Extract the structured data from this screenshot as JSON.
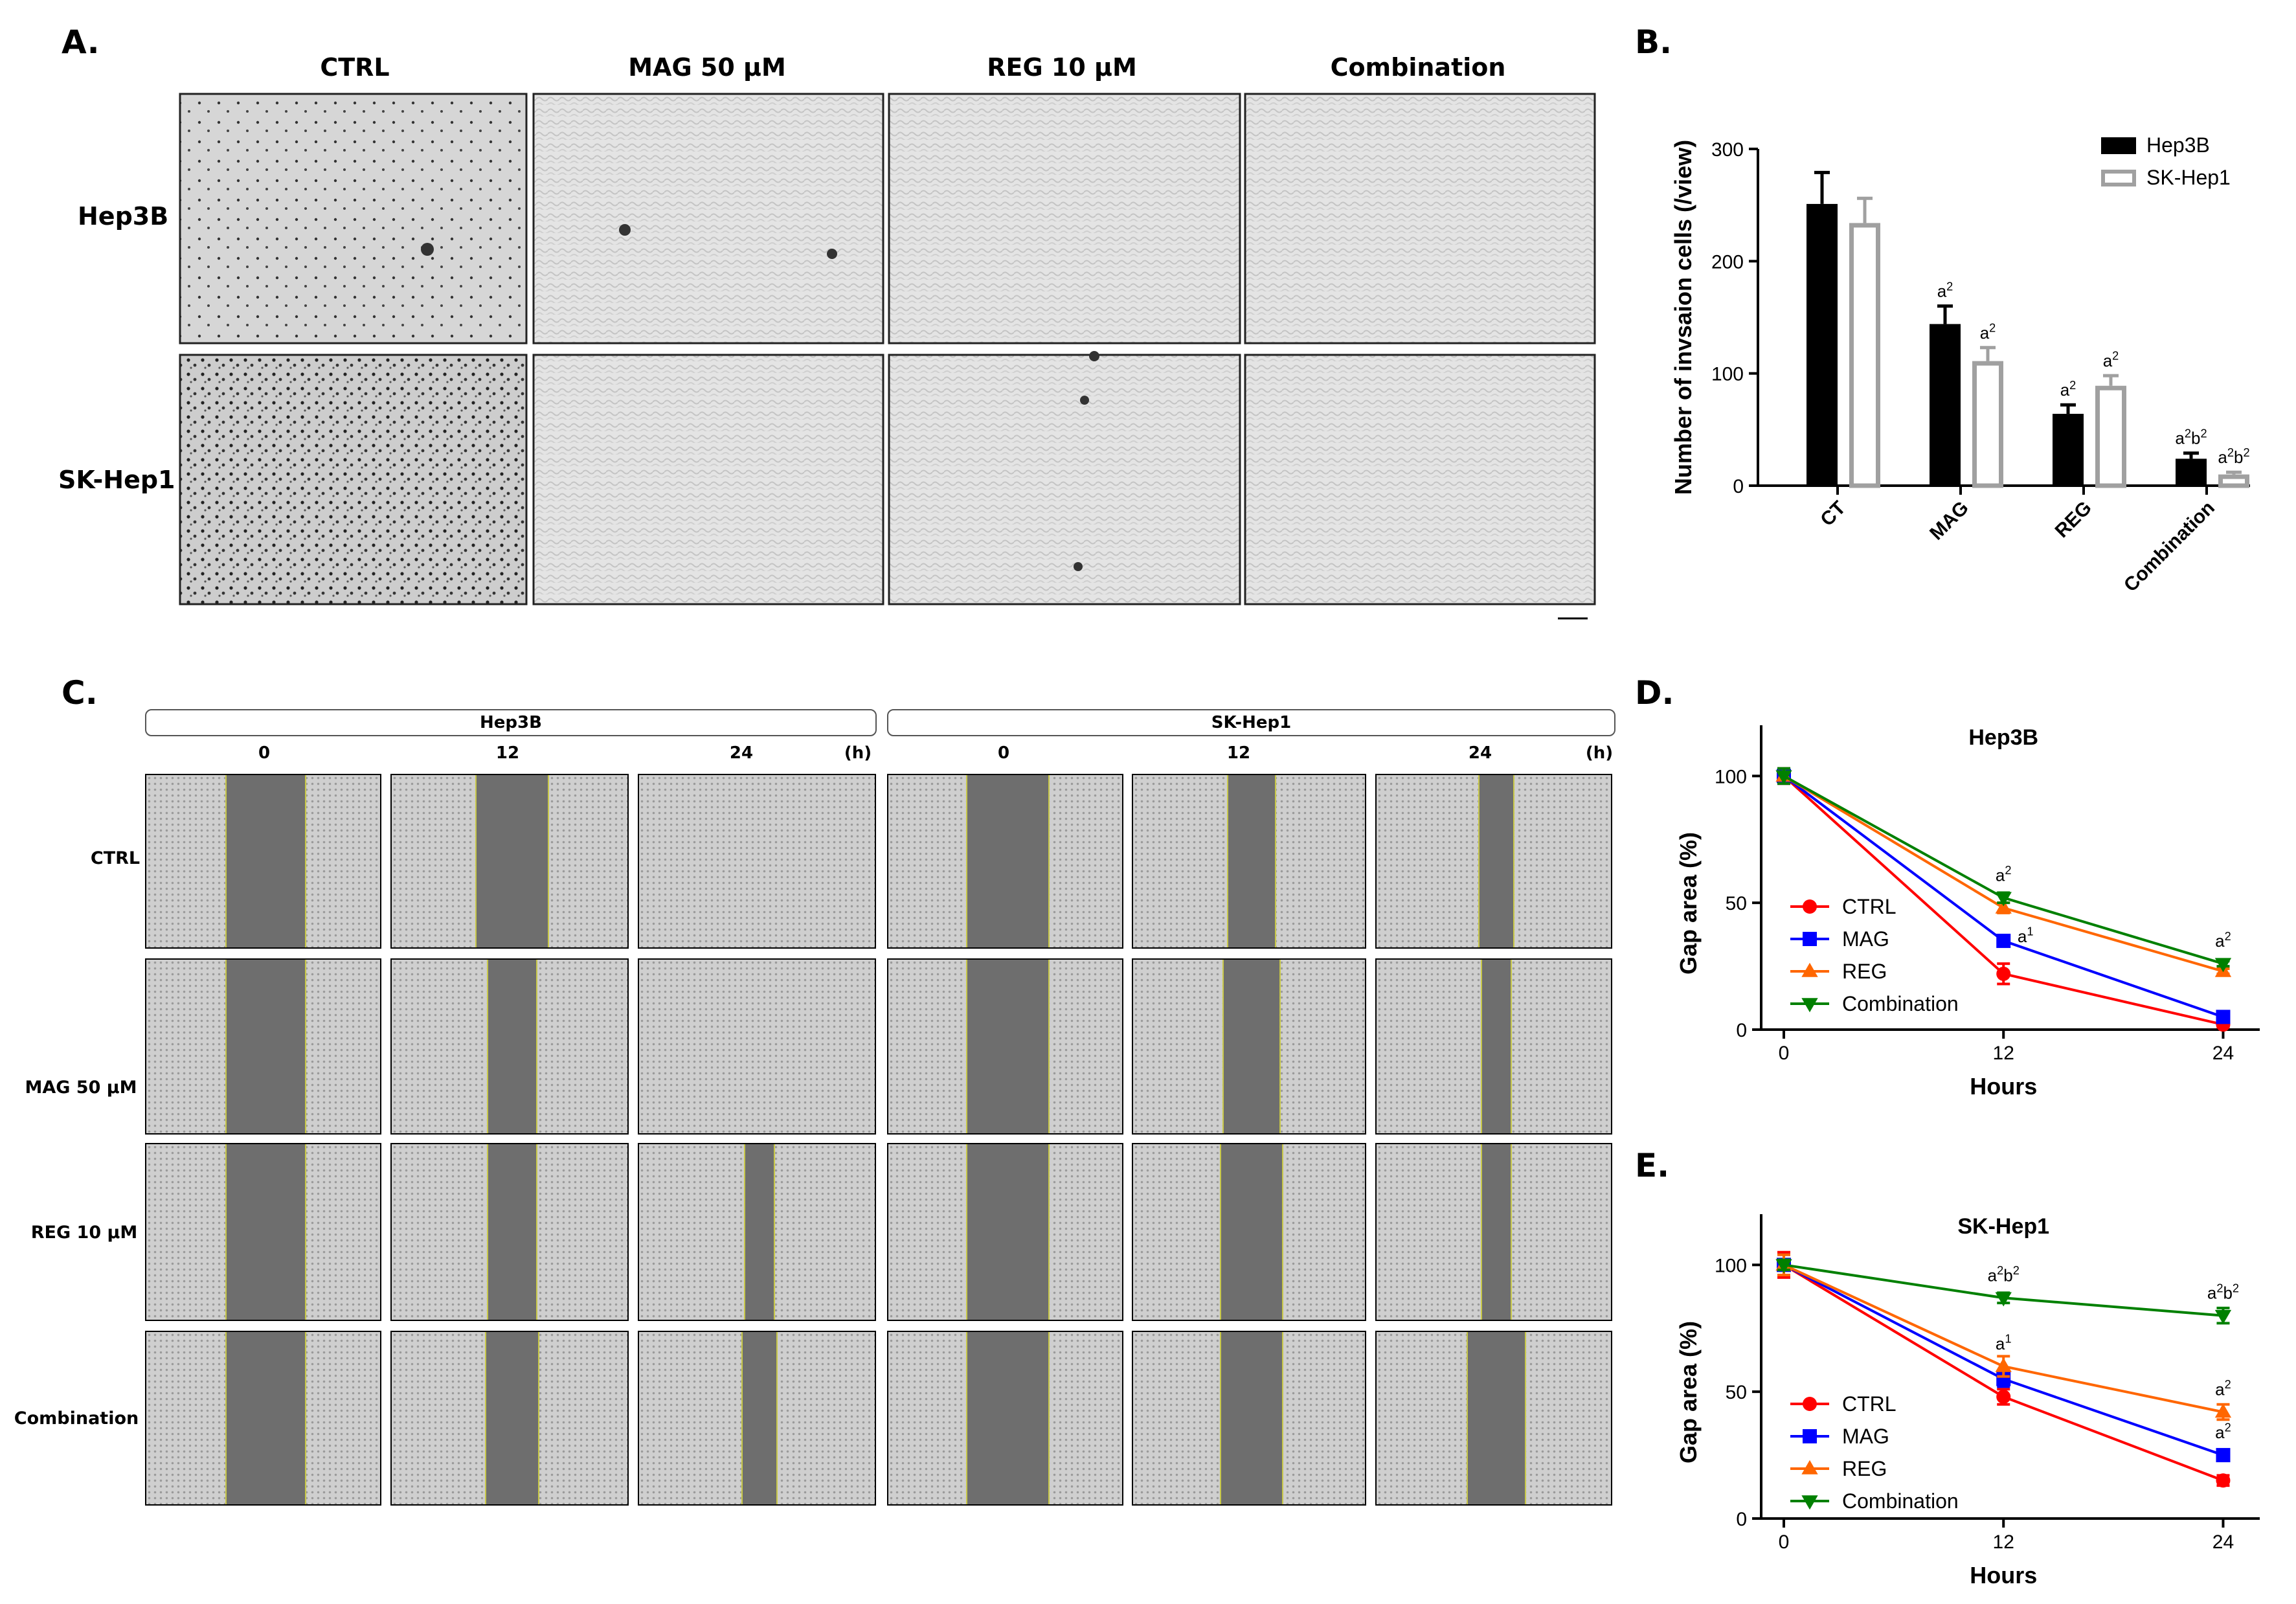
{
  "panels": {
    "a": "A.",
    "b": "B.",
    "c": "C.",
    "d": "D.",
    "e": "E."
  },
  "panel_a": {
    "columns": [
      "CTRL",
      "MAG 50 μM",
      "REG 10 μM",
      "Combination"
    ],
    "rows": [
      "Hep3B",
      "SK-Hep1"
    ]
  },
  "panel_c": {
    "groups": [
      "Hep3B",
      "SK-Hep1"
    ],
    "timepoints": [
      "0",
      "12",
      "24"
    ],
    "unit": "(h)",
    "rows": [
      "CTRL",
      "MAG 50 μM",
      "REG 10 μM",
      "Combination"
    ],
    "gap_fraction": [
      [
        [
          0.33,
          0.3,
          0.0
        ],
        [
          0.34,
          0.2,
          0.14
        ]
      ],
      [
        [
          0.33,
          0.2,
          0.0
        ],
        [
          0.34,
          0.24,
          0.12
        ]
      ],
      [
        [
          0.33,
          0.2,
          0.12
        ],
        [
          0.34,
          0.26,
          0.12
        ]
      ],
      [
        [
          0.33,
          0.22,
          0.14
        ],
        [
          0.34,
          0.26,
          0.24
        ]
      ]
    ]
  },
  "chart_data": [
    {
      "id": "B",
      "type": "bar",
      "title": "",
      "ylabel": "Number of invsaion cells (/view)",
      "xlabel": "",
      "ylim": [
        0,
        300
      ],
      "yticks": [
        0,
        100,
        200,
        300
      ],
      "categories": [
        "CT",
        "MAG",
        "REG",
        "Combination"
      ],
      "series": [
        {
          "name": "Hep3B",
          "color": "#000000",
          "fill": "#000000",
          "values": [
            251,
            144,
            64,
            24
          ],
          "errors": [
            28,
            16,
            8,
            5
          ]
        },
        {
          "name": "SK-Hep1",
          "color": "#a0a0a0",
          "fill": "#ffffff",
          "values": [
            234,
            111,
            89,
            10
          ],
          "errors": [
            22,
            12,
            9,
            2
          ]
        }
      ],
      "annotations": [
        {
          "category": "MAG",
          "series": "Hep3B",
          "text": "a",
          "sup": "2"
        },
        {
          "category": "MAG",
          "series": "SK-Hep1",
          "text": "a",
          "sup": "2"
        },
        {
          "category": "REG",
          "series": "Hep3B",
          "text": "a",
          "sup": "2"
        },
        {
          "category": "REG",
          "series": "SK-Hep1",
          "text": "a",
          "sup": "2"
        },
        {
          "category": "Combination",
          "series": "Hep3B",
          "text": "a",
          "sup": "2",
          "text2": "b",
          "sup2": "2"
        },
        {
          "category": "Combination",
          "series": "SK-Hep1",
          "text": "a",
          "sup": "2",
          "text2": "b",
          "sup2": "2"
        }
      ],
      "legend_position": "top-right"
    },
    {
      "id": "D",
      "type": "line",
      "title": "Hep3B",
      "xlabel": "Hours",
      "ylabel": "Gap area (%)",
      "x": [
        0,
        12,
        24
      ],
      "xlim": [
        0,
        26
      ],
      "ylim": [
        0,
        120
      ],
      "yticks": [
        0,
        50,
        100
      ],
      "xticks": [
        0,
        12,
        24
      ],
      "series": [
        {
          "name": "CTRL",
          "color": "#ff0000",
          "marker": "circle",
          "values": [
            100,
            22,
            2
          ],
          "errors": [
            3,
            4,
            1
          ]
        },
        {
          "name": "MAG",
          "color": "#0000ff",
          "marker": "square",
          "values": [
            100,
            35,
            5
          ],
          "errors": [
            3,
            2,
            1
          ]
        },
        {
          "name": "REG",
          "color": "#ff6600",
          "marker": "triangle-up",
          "values": [
            100,
            48,
            23
          ],
          "errors": [
            3,
            2,
            1
          ]
        },
        {
          "name": "Combination",
          "color": "#008000",
          "marker": "triangle-down",
          "values": [
            100,
            52,
            26
          ],
          "errors": [
            3,
            2,
            1
          ]
        }
      ],
      "annotations": [
        {
          "x": 12,
          "y": 35,
          "text": "a",
          "sup": "1",
          "color": "#0000ff"
        },
        {
          "x": 12,
          "y": 52,
          "text": "a",
          "sup": "2",
          "color": "#008000"
        },
        {
          "x": 24,
          "y": 26,
          "text": "a",
          "sup": "2",
          "color": "#008000"
        }
      ],
      "legend_position": "bottom-left"
    },
    {
      "id": "E",
      "type": "line",
      "title": "SK-Hep1",
      "xlabel": "Hours",
      "ylabel": "Gap area (%)",
      "x": [
        0,
        12,
        24
      ],
      "xlim": [
        0,
        26
      ],
      "ylim": [
        0,
        120
      ],
      "yticks": [
        0,
        50,
        100
      ],
      "xticks": [
        0,
        12,
        24
      ],
      "series": [
        {
          "name": "CTRL",
          "color": "#ff0000",
          "marker": "circle",
          "values": [
            100,
            48,
            15
          ],
          "errors": [
            5,
            3,
            2
          ]
        },
        {
          "name": "MAG",
          "color": "#0000ff",
          "marker": "square",
          "values": [
            100,
            55,
            25
          ],
          "errors": [
            4,
            3,
            1
          ]
        },
        {
          "name": "REG",
          "color": "#ff6600",
          "marker": "triangle-up",
          "values": [
            100,
            60,
            42
          ],
          "errors": [
            4,
            4,
            3
          ]
        },
        {
          "name": "Combination",
          "color": "#008000",
          "marker": "triangle-down",
          "values": [
            100,
            87,
            80
          ],
          "errors": [
            2,
            2,
            3
          ]
        }
      ],
      "annotations": [
        {
          "x": 12,
          "y": 87,
          "text": "a",
          "sup": "2",
          "text2": "b",
          "sup2": "2",
          "color": "#008000"
        },
        {
          "x": 24,
          "y": 80,
          "text": "a",
          "sup": "2",
          "text2": "b",
          "sup2": "2",
          "color": "#008000"
        },
        {
          "x": 12,
          "y": 60,
          "text": "a",
          "sup": "1",
          "color": "#0000ff"
        },
        {
          "x": 24,
          "y": 42,
          "text": "a",
          "sup": "2",
          "color": "#ff6600"
        },
        {
          "x": 24,
          "y": 25,
          "text": "a",
          "sup": "2",
          "color": "#0000ff"
        }
      ],
      "legend_position": "bottom-left"
    }
  ]
}
